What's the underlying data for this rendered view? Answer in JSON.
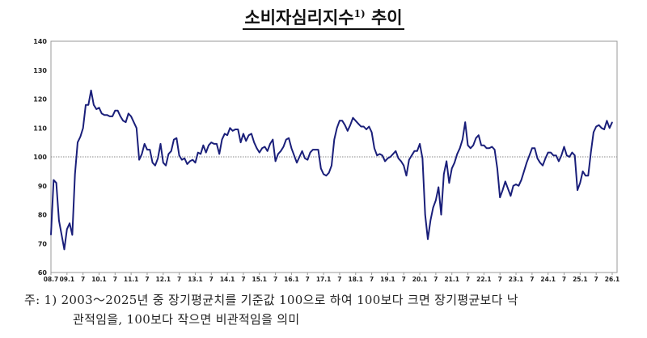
{
  "chart_data": {
    "type": "line",
    "title": "소비자심리지수",
    "title_superscript": "1)",
    "title_suffix": "추이",
    "xlabel": "",
    "ylabel": "",
    "ylim": [
      60,
      140
    ],
    "yticks": [
      60,
      70,
      80,
      90,
      100,
      110,
      120,
      130,
      140
    ],
    "xtick_labels": [
      "08.7",
      "09.1",
      "7",
      "10.1",
      "7",
      "11.1",
      "7",
      "12.1",
      "7",
      "13.1",
      "7",
      "14.1",
      "7",
      "15.1",
      "7",
      "16.1",
      "7",
      "17.1",
      "7",
      "18.1",
      "7",
      "19.1",
      "7",
      "20.1",
      "7",
      "21.1",
      "7",
      "22.1",
      "7",
      "23.1",
      "7",
      "24.1",
      "7",
      "25.1",
      "7",
      "26.1"
    ],
    "start": "2008.7",
    "end": "2026.1",
    "frequency": "monthly",
    "reference_line": 100,
    "grid": false,
    "series": [
      {
        "name": "소비자심리지수",
        "color": "#1a1f7a",
        "values": [
          73,
          92,
          91,
          78,
          73,
          68,
          75,
          77,
          73,
          94,
          105,
          107,
          110,
          118,
          118,
          123,
          118,
          116.5,
          117,
          115,
          114.5,
          114.5,
          114,
          114,
          116,
          116,
          114,
          112.5,
          112,
          115,
          114,
          112,
          110,
          99,
          101,
          104.5,
          102.5,
          102.5,
          98,
          97,
          99.5,
          104.5,
          98,
          97,
          101,
          102,
          106,
          106.5,
          100.5,
          99,
          99.5,
          97.5,
          98.5,
          99,
          98,
          101.5,
          101,
          104,
          101.5,
          104,
          105,
          104.5,
          104.5,
          101,
          106,
          108,
          107.5,
          110,
          109,
          109.5,
          109.5,
          105,
          108,
          105.5,
          107.5,
          108,
          105,
          103,
          101.5,
          103,
          103.5,
          102,
          104.5,
          106,
          98.5,
          101,
          102,
          103.5,
          106,
          106.5,
          103,
          100.5,
          98,
          100,
          102,
          99.5,
          99,
          101.5,
          102.5,
          102.5,
          102.5,
          96,
          94,
          93.5,
          94.5,
          97,
          106,
          110,
          112.5,
          112.5,
          111,
          109,
          111,
          113.5,
          112.5,
          111.5,
          110.5,
          110.5,
          109.5,
          110.5,
          108.5,
          103,
          100.5,
          101,
          100.5,
          98.5,
          99.5,
          100,
          101,
          102,
          99.5,
          98.5,
          97,
          93.5,
          99,
          100.5,
          102,
          102,
          104.5,
          99.5,
          80,
          71.5,
          78,
          82.5,
          85,
          89.5,
          80,
          94,
          98.5,
          91,
          96,
          98,
          101,
          103,
          106,
          112,
          104,
          103,
          104,
          106.5,
          107.5,
          104,
          104,
          103,
          103,
          103.5,
          102.5,
          96,
          86,
          88.5,
          91.5,
          89,
          86.5,
          90,
          90.5,
          90,
          92,
          95,
          98,
          100.5,
          103,
          103,
          99.5,
          98,
          97,
          99.5,
          101.5,
          101.5,
          100.5,
          100.5,
          98.5,
          100.5,
          103.5,
          100.5,
          100,
          101.5,
          100.5,
          88.5,
          91,
          95,
          93.5,
          93.5,
          101.5,
          108.5,
          110.5,
          111,
          110,
          109.5,
          112.5,
          110,
          112
        ]
      }
    ]
  },
  "footnote": {
    "line1": "주: 1) 2003～2025년 중 장기평균치를 기준값 100으로 하여 100보다 크면 장기평균보다 낙",
    "line2": "관적임을, 100보다 작으면 비관적임을 의미"
  }
}
